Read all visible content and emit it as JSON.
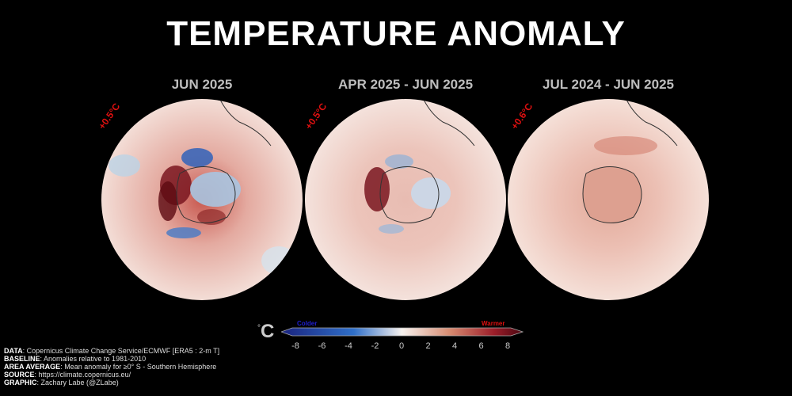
{
  "title": "TEMPERATURE ANOMALY",
  "panels": [
    {
      "title": "JUN 2025",
      "area_average": "+0.5°C"
    },
    {
      "title": "APR 2025 - JUN 2025",
      "area_average": "+0.5°C"
    },
    {
      "title": "JUL 2024 - JUN 2025",
      "area_average": "+0.6°C"
    }
  ],
  "colorbar": {
    "unit": "°C",
    "unit_symbol": "C",
    "unit_degree": "°",
    "colder_label": "Colder",
    "warmer_label": "Warmer",
    "ticks": [
      "-8",
      "-6",
      "-4",
      "-2",
      "0",
      "2",
      "4",
      "6",
      "8"
    ],
    "range": [
      -8,
      8
    ],
    "colors": {
      "cold": "#1a237e",
      "neutral": "#f7f2ef",
      "warm": "#5c0a12",
      "colder_text": "#1f1fcf",
      "warmer_text": "#e01010"
    }
  },
  "credits": [
    {
      "label": "DATA",
      "text": ": Copernicus Climate Change Service/ECMWF [ERA5 : 2-m T]"
    },
    {
      "label": "BASELINE",
      "text": ": Anomalies relative to 1981-2010"
    },
    {
      "label": "AREA AVERAGE",
      "text": ": Mean anomaly for ≥0° S - Southern Hemisphere"
    },
    {
      "label": "SOURCE",
      "text": ": https://climate.copernicus.eu/"
    },
    {
      "label": "GRAPHIC",
      "text": ": Zachary Labe (@ZLabe)"
    }
  ]
}
